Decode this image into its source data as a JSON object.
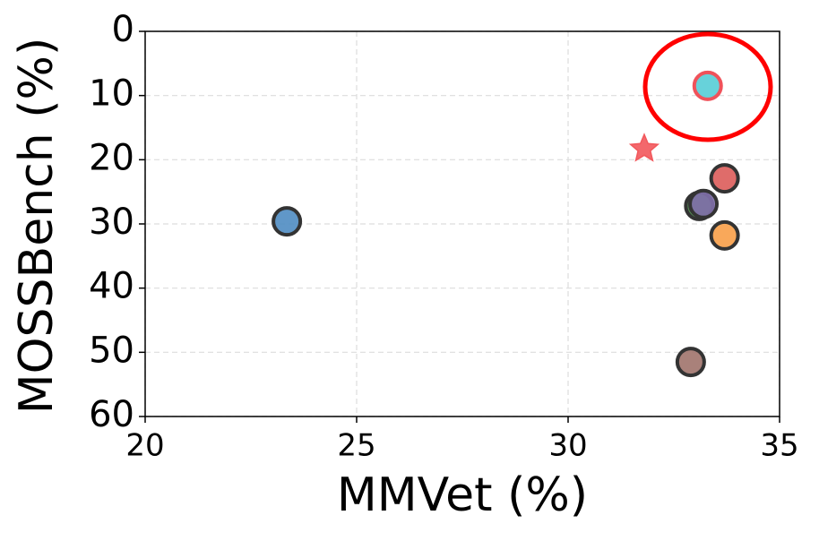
{
  "chart_data": {
    "type": "scatter",
    "x_label": "MMVet (%)",
    "y_label": "MOSSBench (%)",
    "x": [
      23.35,
      33.3,
      31.8,
      33.7,
      33.1,
      33.2,
      33.7,
      32.9
    ],
    "y": [
      29.6,
      8.5,
      18.3,
      22.9,
      27.2,
      26.9,
      31.8,
      51.5
    ],
    "colors": [
      "#4f8cc2",
      "#57cdd6",
      "#f2585c",
      "#dc5c5a",
      "#3f7a3f",
      "#8170ab",
      "#f89e48",
      "#a0736b"
    ],
    "edgecolors": [
      "#333333",
      "#f0525a",
      "#f2585c",
      "#333333",
      "#333333",
      "#333333",
      "#333333",
      "#333333"
    ],
    "markers": [
      "o",
      "o",
      "*",
      "o",
      "o",
      "o",
      "o",
      "o"
    ],
    "xlim": [
      20,
      35
    ],
    "xticks": [
      20,
      25,
      30,
      35
    ],
    "ylim": [
      60,
      0
    ],
    "yticks": [
      0,
      10,
      20,
      30,
      40,
      50,
      60
    ],
    "grid": true
  }
}
